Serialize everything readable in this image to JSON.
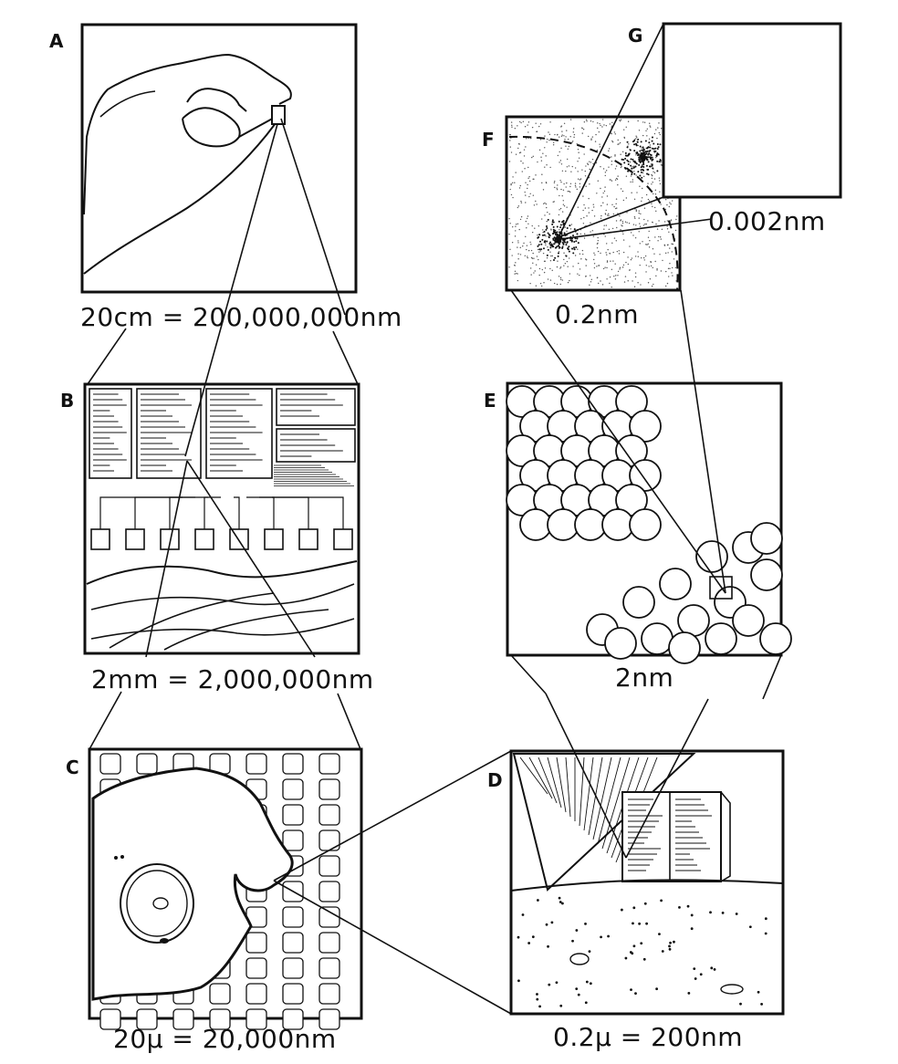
{
  "panels": {
    "A": {
      "letter": "A",
      "label": "20cm = 200,000,000nm"
    },
    "B": {
      "letter": "B",
      "label": "2mm = 2,000,000nm"
    },
    "C": {
      "letter": "C",
      "label": "20μ = 20,000nm"
    },
    "D": {
      "letter": "D",
      "label": "0.2μ = 200nm"
    },
    "E": {
      "letter": "E",
      "label": "2nm"
    },
    "F": {
      "letter": "F",
      "label": "0.2nm"
    },
    "G": {
      "letter": "G",
      "label": "0.002nm"
    }
  },
  "icons": {
    "A": "hand-pinching-chip-icon",
    "B": "integrated-circuit-die-icon",
    "C": "biological-cell-icon",
    "D": "probe-tip-and-block-icon",
    "E": "atom-cluster-icon",
    "F": "electron-density-cloud-icon",
    "G": "empty-nucleus-scale-icon"
  }
}
